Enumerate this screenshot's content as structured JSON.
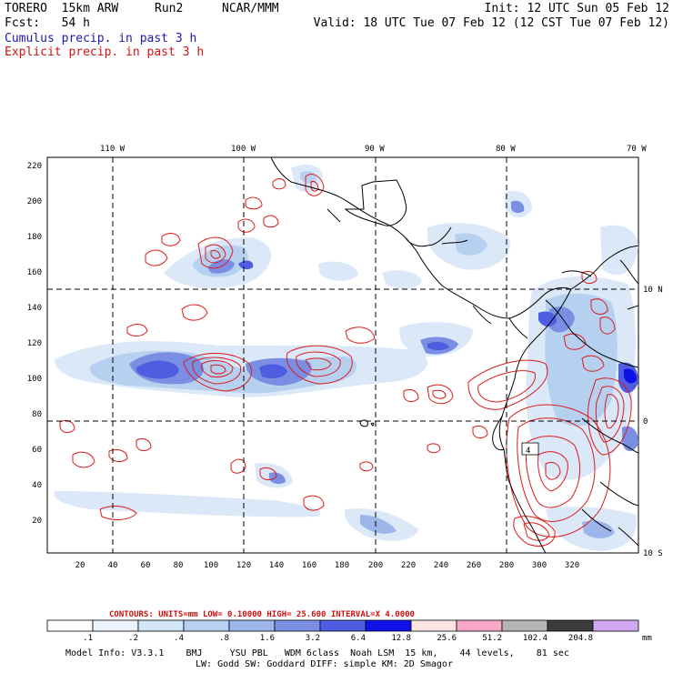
{
  "header": {
    "model": "TORERO  15km ARW",
    "run": "Run2",
    "org": "NCAR/MMM",
    "init": "Init: 12 UTC Sun 05 Feb 12",
    "fcst": "Fcst:   54 h",
    "valid": "Valid: 18 UTC Tue 07 Feb 12 (12 CST Tue 07 Feb 12)",
    "field1": "Cumulus precip. in past 3 h",
    "field2": "Explicit precip. in past 3 h"
  },
  "map": {
    "lon_labels": [
      "110 W",
      "100 W",
      "90 W",
      "80 W",
      "70 W"
    ],
    "lat_labels": [
      "10 N",
      "0",
      "10 S"
    ],
    "y_ticks": [
      "220",
      "200",
      "180",
      "160",
      "140",
      "120",
      "100",
      "80",
      "60",
      "40",
      "20"
    ],
    "x_ticks": [
      "20",
      "40",
      "60",
      "80",
      "100",
      "120",
      "140",
      "160",
      "180",
      "200",
      "220",
      "240",
      "260",
      "280",
      "300",
      "320"
    ],
    "contour_label": "4"
  },
  "contours_info": {
    "text": "CONTOURS:  UNITS=mm  LOW= 0.10000     HIGH=  25.600     INTERVAL=X  4.0000"
  },
  "colorbar": {
    "labels": [
      ".1",
      ".2",
      ".4",
      ".8",
      "1.6",
      "3.2",
      "6.4",
      "12.8",
      "25.6",
      "51.2",
      "102.4",
      "204.8"
    ],
    "colors": [
      "#ffffff",
      "#eaf2fb",
      "#d2e4f7",
      "#b6d0f0",
      "#9cb6ec",
      "#7a8ee4",
      "#4f5ee0",
      "#1010e8",
      "#ffe4e4",
      "#f8a8c8",
      "#b4b4b4",
      "#3c3c3c",
      "#d0a8f4"
    ],
    "unit": "mm"
  },
  "footer": {
    "line1": "Model Info: V3.3.1    BMJ     YSU PBL   WDM 6class  Noah LSM  15 km,    44 levels,    81 sec",
    "line2": "LW: Godd SW: Goddard DIFF: simple KM: 2D Smagor"
  }
}
